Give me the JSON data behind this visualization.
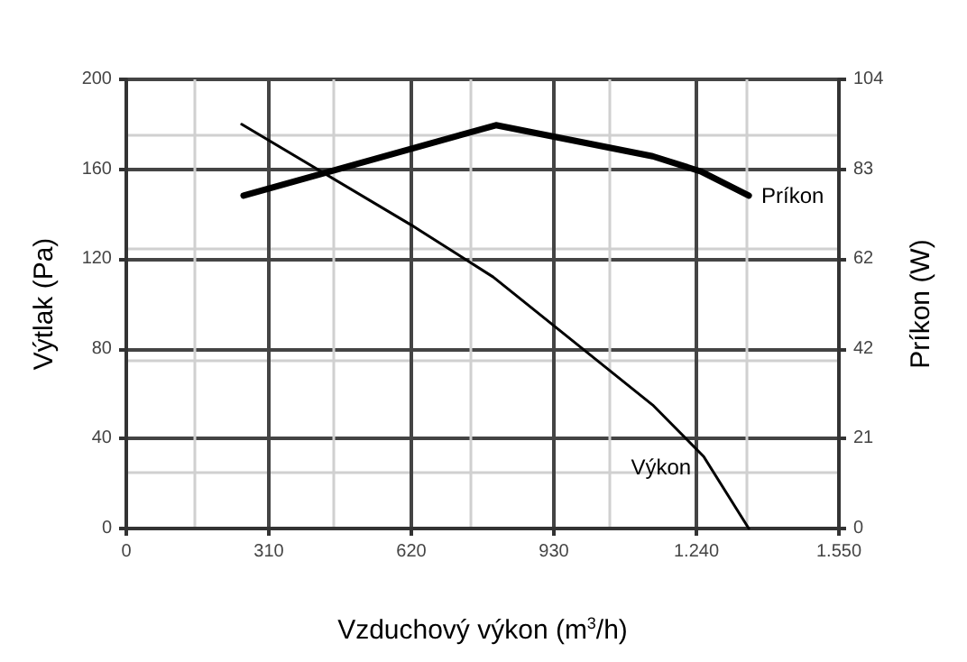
{
  "chart_data": {
    "type": "line",
    "xlabel": "Vzduchový výkon (m$^{3}$/h)",
    "ylabel": "Výtlak (Pa)",
    "y2label": "Príkon (W)",
    "xlim": [
      0,
      1550
    ],
    "xticks": [
      0,
      310,
      620,
      {
        "value": 930,
        "label": "930"
      },
      {
        "value": 1240,
        "label": "1.240"
      },
      {
        "value": 1550,
        "label": "1.550"
      }
    ],
    "ylim": [
      0,
      200
    ],
    "yticks": [
      0,
      40,
      80,
      120,
      160,
      200
    ],
    "y2lim": [
      0,
      104
    ],
    "y2ticks": [
      0,
      {
        "value": 20.8,
        "label": "21"
      },
      {
        "value": 41.6,
        "label": "42"
      },
      {
        "value": 62.4,
        "label": "62"
      },
      {
        "value": 83.2,
        "label": "83"
      },
      104
    ],
    "grid": true,
    "legend": false,
    "marker": "none",
    "line_style": "solid",
    "series": [
      {
        "name": "Výkon",
        "color": "#000000",
        "x": [
          251,
          621,
          798,
          1145,
          1256,
          1354
        ],
        "values": [
          180,
          135,
          112,
          55,
          32,
          0
        ]
      },
      {
        "name": "Príkon",
        "color": "#000000",
        "axis": "y2",
        "x": [
          255,
          804,
          1145,
          1249,
          1354
        ],
        "values": [
          77.1,
          93.4,
          86.2,
          82.7,
          77.1
        ]
      }
    ]
  }
}
